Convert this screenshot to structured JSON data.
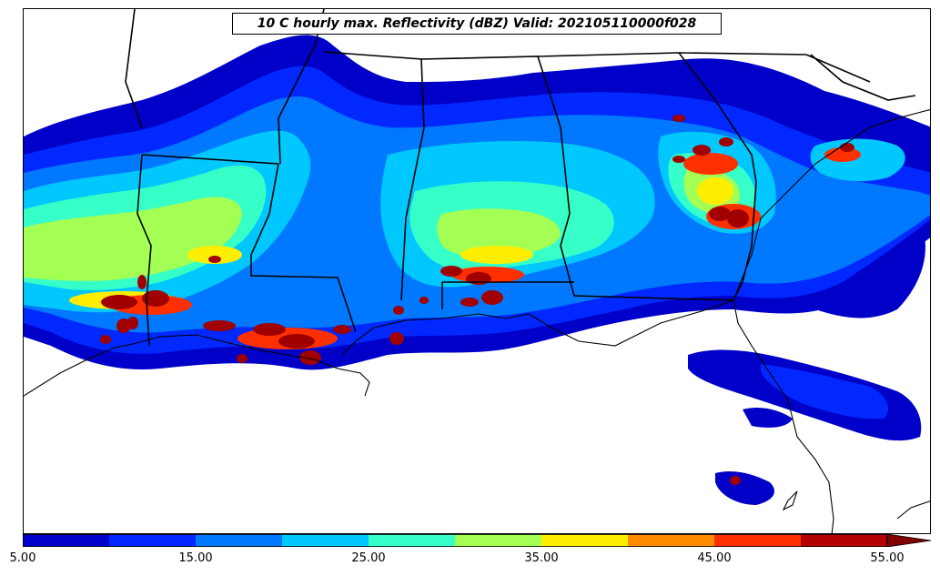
{
  "title": "10 C hourly max. Reflectivity (dBZ) Valid: 202105110000f028",
  "colorbar": {
    "min": 5,
    "max": 55,
    "extend": "max",
    "tick_labels": [
      "5.00",
      "15.00",
      "25.00",
      "35.00",
      "45.00",
      "55.00"
    ],
    "bins": [
      {
        "from": 5,
        "to": 10,
        "color": "#0000c8"
      },
      {
        "from": 10,
        "to": 15,
        "color": "#0028ff"
      },
      {
        "from": 15,
        "to": 20,
        "color": "#0078ff"
      },
      {
        "from": 20,
        "to": 25,
        "color": "#00c8ff"
      },
      {
        "from": 25,
        "to": 30,
        "color": "#36ffc8"
      },
      {
        "from": 30,
        "to": 35,
        "color": "#a4ff54"
      },
      {
        "from": 35,
        "to": 40,
        "color": "#ffee00"
      },
      {
        "from": 40,
        "to": 45,
        "color": "#ff8c00"
      },
      {
        "from": 45,
        "to": 50,
        "color": "#ff3000"
      },
      {
        "from": 50,
        "to": 55,
        "color": "#b40000"
      }
    ],
    "over_color": "#800000"
  },
  "map": {
    "region": "Southeastern United States",
    "colors": {
      "background": "#ffffff",
      "borders": "#000000"
    }
  }
}
